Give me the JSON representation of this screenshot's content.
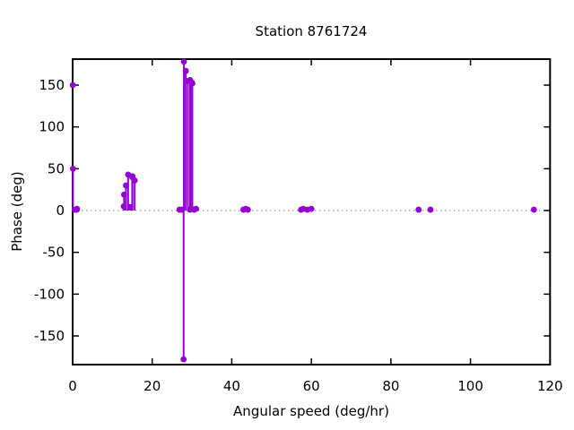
{
  "window": {
    "background_color": "#ffffff"
  },
  "chart_data": {
    "type": "stem",
    "title": "Station 8761724",
    "xlabel": "Angular speed (deg/hr)",
    "ylabel": "Phase (deg)",
    "xlim": [
      0,
      120
    ],
    "ylim": [
      -184.3,
      181.1
    ],
    "xticks": [
      0,
      20,
      40,
      60,
      80,
      100,
      120
    ],
    "yticks": [
      -150,
      -100,
      -50,
      0,
      50,
      100,
      150
    ],
    "grid": false,
    "legend": false,
    "zero_line": true,
    "marker": "filled-circle",
    "marker_color": "#9400d3",
    "stem_color": "#9400d3",
    "zero_line_color": "#7f7f7f",
    "border_color": "#000000",
    "points": [
      {
        "x": 0.041,
        "y": 150,
        "stem": false
      },
      {
        "x": 0.082,
        "y": 50
      },
      {
        "x": 0.544,
        "y": 1
      },
      {
        "x": 1.016,
        "y": 1
      },
      {
        "x": 1.098,
        "y": 2
      },
      {
        "x": 12.85,
        "y": 5
      },
      {
        "x": 12.93,
        "y": 19
      },
      {
        "x": 13.4,
        "y": 30
      },
      {
        "x": 13.94,
        "y": 43
      },
      {
        "x": 14.49,
        "y": 4
      },
      {
        "x": 14.96,
        "y": 40
      },
      {
        "x": 15.04,
        "y": 41
      },
      {
        "x": 15.59,
        "y": 36
      },
      {
        "x": 26.87,
        "y": 1
      },
      {
        "x": 27.42,
        "y": 1
      },
      {
        "x": 27.9,
        "y": -178
      },
      {
        "x": 27.97,
        "y": 178
      },
      {
        "x": 28.44,
        "y": 167
      },
      {
        "x": 28.98,
        "y": 155
      },
      {
        "x": 29.46,
        "y": 1
      },
      {
        "x": 29.53,
        "y": 156
      },
      {
        "x": 30.0,
        "y": 153
      },
      {
        "x": 30.08,
        "y": 152
      },
      {
        "x": 30.54,
        "y": 1
      },
      {
        "x": 31.02,
        "y": 2
      },
      {
        "x": 42.93,
        "y": 1
      },
      {
        "x": 43.48,
        "y": 2
      },
      {
        "x": 44.03,
        "y": 1
      },
      {
        "x": 57.42,
        "y": 1
      },
      {
        "x": 57.97,
        "y": 2
      },
      {
        "x": 58.98,
        "y": 1
      },
      {
        "x": 60.0,
        "y": 2
      },
      {
        "x": 86.95,
        "y": 1
      },
      {
        "x": 89.95,
        "y": 1
      },
      {
        "x": 115.94,
        "y": 1
      }
    ]
  }
}
